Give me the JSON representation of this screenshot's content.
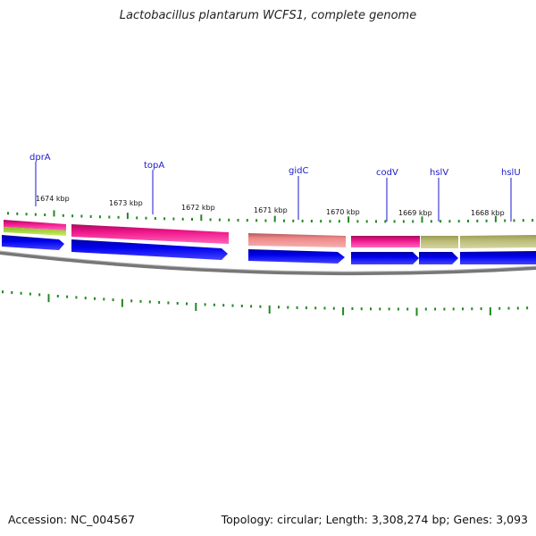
{
  "title": "Lactobacillus plantarum WCFS1, complete genome",
  "footer": {
    "accession": "Accession: NC_004567",
    "summary": "Topology: circular; Length: 3,308,274 bp; Genes: 3,093"
  },
  "gene_labels": [
    {
      "key": "dprA",
      "text": "dprA"
    },
    {
      "key": "topA",
      "text": "topA"
    },
    {
      "key": "gidC",
      "text": "gidC"
    },
    {
      "key": "codV",
      "text": "codV"
    },
    {
      "key": "hslV",
      "text": "hslV"
    },
    {
      "key": "hslU",
      "text": "hslU"
    }
  ],
  "kbp_labels": [
    "1674 kbp",
    "1673 kbp",
    "1672 kbp",
    "1671 kbp",
    "1670 kbp",
    "1669 kbp",
    "1668 kbp"
  ],
  "colors": {
    "cds_strand": "#0000ee",
    "feature_magenta": "#ee1188",
    "feature_salmon": "#ee8888",
    "feature_olive": "#bbbb77",
    "feature_lime": "#aadd33",
    "backbone": "#888888",
    "gc_marks": "#228822",
    "label_line": "#1a1acc"
  }
}
